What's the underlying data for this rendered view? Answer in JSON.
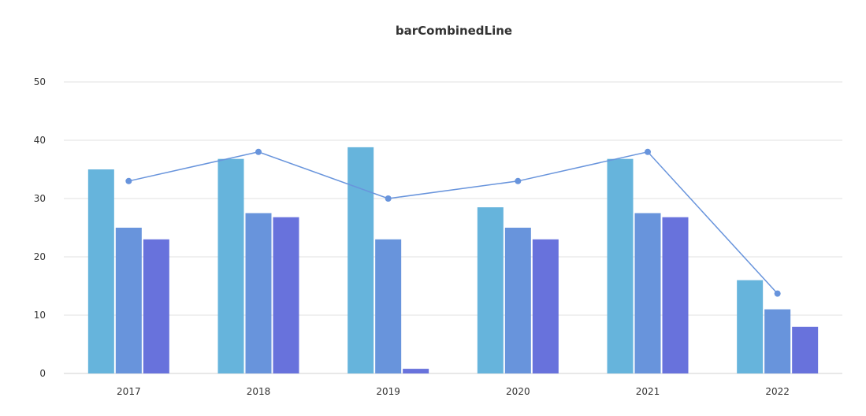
{
  "chart_data": {
    "type": "bar",
    "title": "barCombinedLine",
    "xlabel": "",
    "ylabel": "",
    "categories": [
      "2017",
      "2018",
      "2019",
      "2020",
      "2021",
      "2022"
    ],
    "ylim": [
      0,
      50
    ],
    "yticks": [
      0,
      10,
      20,
      30,
      40,
      50
    ],
    "grid": true,
    "legend": "none",
    "series": [
      {
        "type": "bar",
        "values": [
          35,
          36.8,
          38.8,
          28.5,
          36.8,
          16
        ],
        "color": "#66b4dc"
      },
      {
        "type": "bar",
        "values": [
          25,
          27.5,
          23,
          25,
          27.5,
          11
        ],
        "color": "#6894dc"
      },
      {
        "type": "bar",
        "values": [
          23,
          26.8,
          0.8,
          23,
          26.8,
          8
        ],
        "color": "#6872dc"
      },
      {
        "type": "line",
        "values": [
          33,
          38,
          30,
          33,
          38,
          13.7
        ],
        "color": "#6894dc"
      }
    ],
    "colors": {
      "grid": "#e0e0e0",
      "axis_text": "#333333"
    }
  }
}
